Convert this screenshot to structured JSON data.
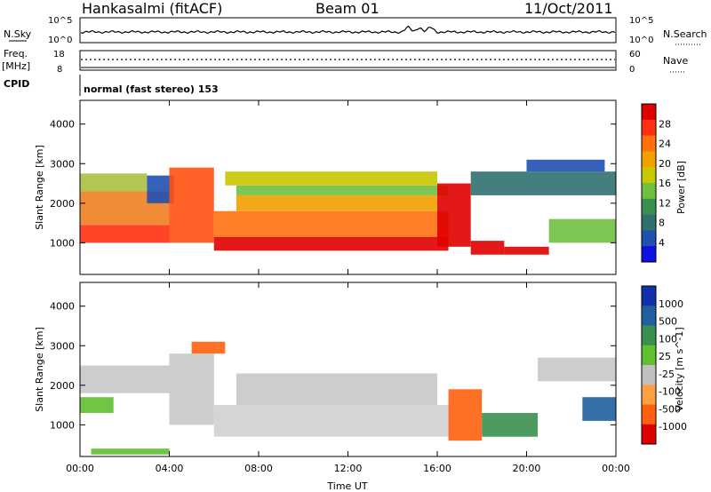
{
  "header": {
    "station": "Hankasalmi (fitACF)",
    "beam": "Beam 01",
    "date": "11/Oct/2011"
  },
  "status_panels": {
    "nsky_label": "N.Sky",
    "nsky_ticks": [
      "10^5",
      "10^0"
    ],
    "nsearch_label": "N.Search",
    "nsearch_ticks": [
      "10^5",
      "10^0"
    ],
    "freq_label": "Freq.",
    "freq_unit": "[MHz]",
    "freq_ticks": [
      "18",
      "8"
    ],
    "nave_label": "Nave",
    "nave_ticks": [
      "60",
      "0"
    ],
    "cpid_label": "CPID",
    "cpid_text": "normal (fast stereo) 153"
  },
  "chart_data": [
    {
      "type": "heatmap",
      "name": "power",
      "ylabel": "Slant Range [km]",
      "ylim": [
        200,
        4600
      ],
      "yticks": [
        1000,
        2000,
        3000,
        4000
      ],
      "xlim": [
        0,
        24
      ],
      "xticks": [
        "00:00",
        "04:00",
        "08:00",
        "12:00",
        "16:00",
        "20:00",
        "00:00"
      ],
      "colorbar": {
        "label": "Power [dB]",
        "ticks": [
          "28",
          "24",
          "20",
          "16",
          "12",
          "8",
          "4"
        ],
        "colors": [
          "#e00000",
          "#ff3010",
          "#ff7010",
          "#f0a000",
          "#c8c800",
          "#70c040",
          "#3a9050",
          "#307070",
          "#2050b0",
          "#1010e0"
        ],
        "range": [
          0,
          30
        ]
      },
      "bands": [
        {
          "t0": 0.0,
          "t1": 4.0,
          "r0": 1000,
          "r1": 1450,
          "color": "#ff3010"
        },
        {
          "t0": 0.0,
          "t1": 4.0,
          "r0": 1450,
          "r1": 2300,
          "color": "#f08020"
        },
        {
          "t0": 0.0,
          "t1": 3.0,
          "r0": 2300,
          "r1": 2750,
          "color": "#a8c040"
        },
        {
          "t0": 3.0,
          "t1": 4.2,
          "r0": 2000,
          "r1": 2700,
          "color": "#2050b0"
        },
        {
          "t0": 4.0,
          "t1": 6.0,
          "r0": 1000,
          "r1": 2900,
          "color": "#ff5010"
        },
        {
          "t0": 6.0,
          "t1": 16.5,
          "r0": 800,
          "r1": 1150,
          "color": "#e00000"
        },
        {
          "t0": 6.0,
          "t1": 16.5,
          "r0": 1150,
          "r1": 1800,
          "color": "#ff7010"
        },
        {
          "t0": 7.0,
          "t1": 16.0,
          "r0": 1800,
          "r1": 2200,
          "color": "#f0a000"
        },
        {
          "t0": 7.0,
          "t1": 16.5,
          "r0": 2200,
          "r1": 2450,
          "color": "#70c040"
        },
        {
          "t0": 6.5,
          "t1": 16.0,
          "r0": 2450,
          "r1": 2800,
          "color": "#c8c800"
        },
        {
          "t0": 16.0,
          "t1": 17.5,
          "r0": 900,
          "r1": 2500,
          "color": "#e00000"
        },
        {
          "t0": 17.5,
          "t1": 19.0,
          "r0": 700,
          "r1": 1050,
          "color": "#e00000"
        },
        {
          "t0": 19.0,
          "t1": 21.0,
          "r0": 700,
          "r1": 900,
          "color": "#e00000"
        },
        {
          "t0": 17.5,
          "t1": 24.0,
          "r0": 2200,
          "r1": 2800,
          "color": "#307070"
        },
        {
          "t0": 21.0,
          "t1": 24.0,
          "r0": 1000,
          "r1": 1600,
          "color": "#70c040"
        },
        {
          "t0": 20.0,
          "t1": 23.5,
          "r0": 2800,
          "r1": 3100,
          "color": "#2050b0"
        }
      ]
    },
    {
      "type": "heatmap",
      "name": "velocity",
      "ylabel": "Slant Range [km]",
      "ylim": [
        200,
        4600
      ],
      "yticks": [
        1000,
        2000,
        3000,
        4000
      ],
      "xlim": [
        0,
        24
      ],
      "xticks": [
        "00:00",
        "04:00",
        "08:00",
        "12:00",
        "16:00",
        "20:00",
        "00:00"
      ],
      "xlabel": "Time UT",
      "colorbar": {
        "label": "Velocity [m s^-1]",
        "ticks": [
          "1000",
          "500",
          "100",
          "25",
          "-25",
          "-100",
          "-500",
          "-1000"
        ],
        "colors": [
          "#1030b0",
          "#2060a0",
          "#3a9050",
          "#60c030",
          "#c0c0c0",
          "#ffa040",
          "#ff6010",
          "#e00000"
        ],
        "range": [
          -1000,
          1000
        ]
      },
      "bands": [
        {
          "t0": 0.0,
          "t1": 4.0,
          "r0": 1800,
          "r1": 2500,
          "color": "#c8c8c8"
        },
        {
          "t0": 0.0,
          "t1": 1.5,
          "r0": 1300,
          "r1": 1700,
          "color": "#60c030"
        },
        {
          "t0": 4.0,
          "t1": 6.0,
          "r0": 1000,
          "r1": 2800,
          "color": "#c8c8c8"
        },
        {
          "t0": 6.0,
          "t1": 16.5,
          "r0": 700,
          "r1": 1500,
          "color": "#d0d0d0"
        },
        {
          "t0": 7.0,
          "t1": 16.0,
          "r0": 1500,
          "r1": 2300,
          "color": "#c8c8c8"
        },
        {
          "t0": 16.5,
          "t1": 18.0,
          "r0": 600,
          "r1": 1900,
          "color": "#ff6010"
        },
        {
          "t0": 18.0,
          "t1": 20.5,
          "r0": 700,
          "r1": 1300,
          "color": "#3a9050"
        },
        {
          "t0": 20.5,
          "t1": 24.0,
          "r0": 2100,
          "r1": 2700,
          "color": "#c8c8c8"
        },
        {
          "t0": 22.5,
          "t1": 24.0,
          "r0": 1100,
          "r1": 1700,
          "color": "#2060a0"
        },
        {
          "t0": 0.5,
          "t1": 4.0,
          "r0": 250,
          "r1": 400,
          "color": "#60c030"
        },
        {
          "t0": 5.0,
          "t1": 6.5,
          "r0": 2800,
          "r1": 3100,
          "color": "#ff6010"
        }
      ]
    }
  ]
}
